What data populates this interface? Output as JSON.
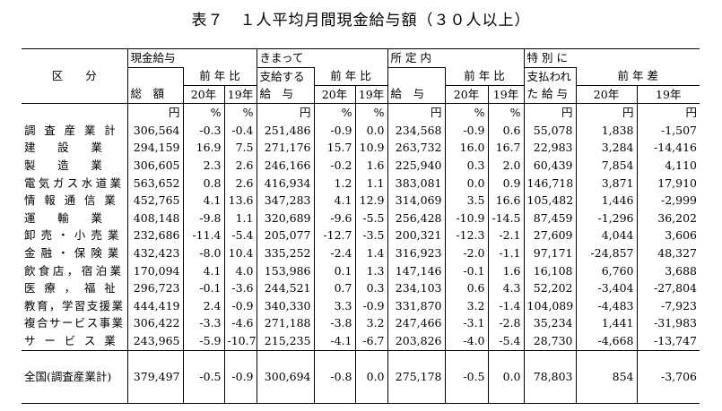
{
  "title": "表７　１人平均月間現金給与額（３０人以上）",
  "header": {
    "kubun": "区　　分",
    "genkin": "現金給与",
    "sogaku": "総　額",
    "kimatte_1": "きまって",
    "kimatte_2": "支給する",
    "kimatte_3": "給　与",
    "shotei_1": "所 定 内",
    "shotei_3": "給　与",
    "tokubetsu_1": "特 別 に",
    "tokubetsu_2": "支払われ",
    "tokubetsu_3": "た 給 与",
    "zennenhi": "前 年 比",
    "zennensa": "前 年 差",
    "y20": "20年",
    "y19": "19年",
    "unit_yen": "円",
    "unit_pct": "%"
  },
  "rows": [
    {
      "label": "調査産業計",
      "c": [
        "306,564",
        "-0.3",
        "-0.4",
        "251,486",
        "-0.9",
        "0.0",
        "234,568",
        "-0.9",
        "0.6",
        "55,078",
        "1,838",
        "-1,507"
      ]
    },
    {
      "label": "建設業",
      "c": [
        "294,159",
        "16.9",
        "7.5",
        "271,176",
        "15.7",
        "10.9",
        "263,732",
        "16.0",
        "16.7",
        "22,983",
        "3,284",
        "-14,416"
      ]
    },
    {
      "label": "製造業",
      "c": [
        "306,605",
        "2.3",
        "2.6",
        "246,166",
        "-0.2",
        "1.6",
        "225,940",
        "0.3",
        "2.0",
        "60,439",
        "7,854",
        "4,110"
      ]
    },
    {
      "label": "電気ガス水道業",
      "c": [
        "563,652",
        "0.8",
        "2.6",
        "416,934",
        "1.2",
        "1.1",
        "383,081",
        "0.0",
        "0.9",
        "146,718",
        "3,871",
        "17,910"
      ]
    },
    {
      "label": "情報通信業",
      "c": [
        "452,765",
        "4.1",
        "13.6",
        "347,283",
        "4.1",
        "12.9",
        "314,069",
        "3.5",
        "16.6",
        "105,482",
        "1,446",
        "-2,999"
      ]
    },
    {
      "label": "運輸業",
      "c": [
        "408,148",
        "-9.8",
        "1.1",
        "320,689",
        "-9.6",
        "-5.5",
        "256,428",
        "-10.9",
        "-14.5",
        "87,459",
        "-1,296",
        "36,202"
      ]
    },
    {
      "label": "卸売・小売業",
      "c": [
        "232,686",
        "-11.4",
        "-5.4",
        "205,077",
        "-12.7",
        "-3.5",
        "200,321",
        "-12.3",
        "-2.1",
        "27,609",
        "4,044",
        "3,606"
      ]
    },
    {
      "label": "金融・保険業",
      "c": [
        "432,423",
        "-8.0",
        "10.4",
        "335,252",
        "-2.4",
        "1.4",
        "316,923",
        "-2.0",
        "-1.1",
        "97,171",
        "-24,857",
        "48,327"
      ]
    },
    {
      "label": "飲食店，宿泊業",
      "c": [
        "170,094",
        "4.1",
        "4.0",
        "153,986",
        "0.1",
        "1.3",
        "147,146",
        "-0.1",
        "1.6",
        "16,108",
        "6,760",
        "3,688"
      ]
    },
    {
      "label": "医療，福祉",
      "c": [
        "296,723",
        "-0.1",
        "-3.6",
        "244,521",
        "0.7",
        "0.3",
        "234,103",
        "0.6",
        "4.3",
        "52,202",
        "-3,404",
        "-27,804"
      ]
    },
    {
      "label": "教育，学習支援業",
      "c": [
        "444,419",
        "2.4",
        "-0.9",
        "340,330",
        "3.3",
        "-0.9",
        "331,870",
        "3.2",
        "-1.4",
        "104,089",
        "-4,483",
        "-7,923"
      ]
    },
    {
      "label": "複合サービス事業",
      "c": [
        "306,422",
        "-3.3",
        "-4.6",
        "271,188",
        "-3.8",
        "3.2",
        "247,466",
        "-3.1",
        "-2.8",
        "35,234",
        "1,441",
        "-31,983"
      ]
    },
    {
      "label": "サービス業",
      "c": [
        "243,965",
        "-5.9",
        "-10.7",
        "215,235",
        "-4.1",
        "-6.7",
        "203,826",
        "-4.0",
        "-5.4",
        "28,730",
        "-4,668",
        "-13,747"
      ]
    }
  ],
  "total": {
    "label": "全国(調査産業計)",
    "c": [
      "379,497",
      "-0.5",
      "-0.9",
      "300,694",
      "-0.8",
      "0.0",
      "275,178",
      "-0.5",
      "0.0",
      "78,803",
      "854",
      "-3,706"
    ]
  }
}
